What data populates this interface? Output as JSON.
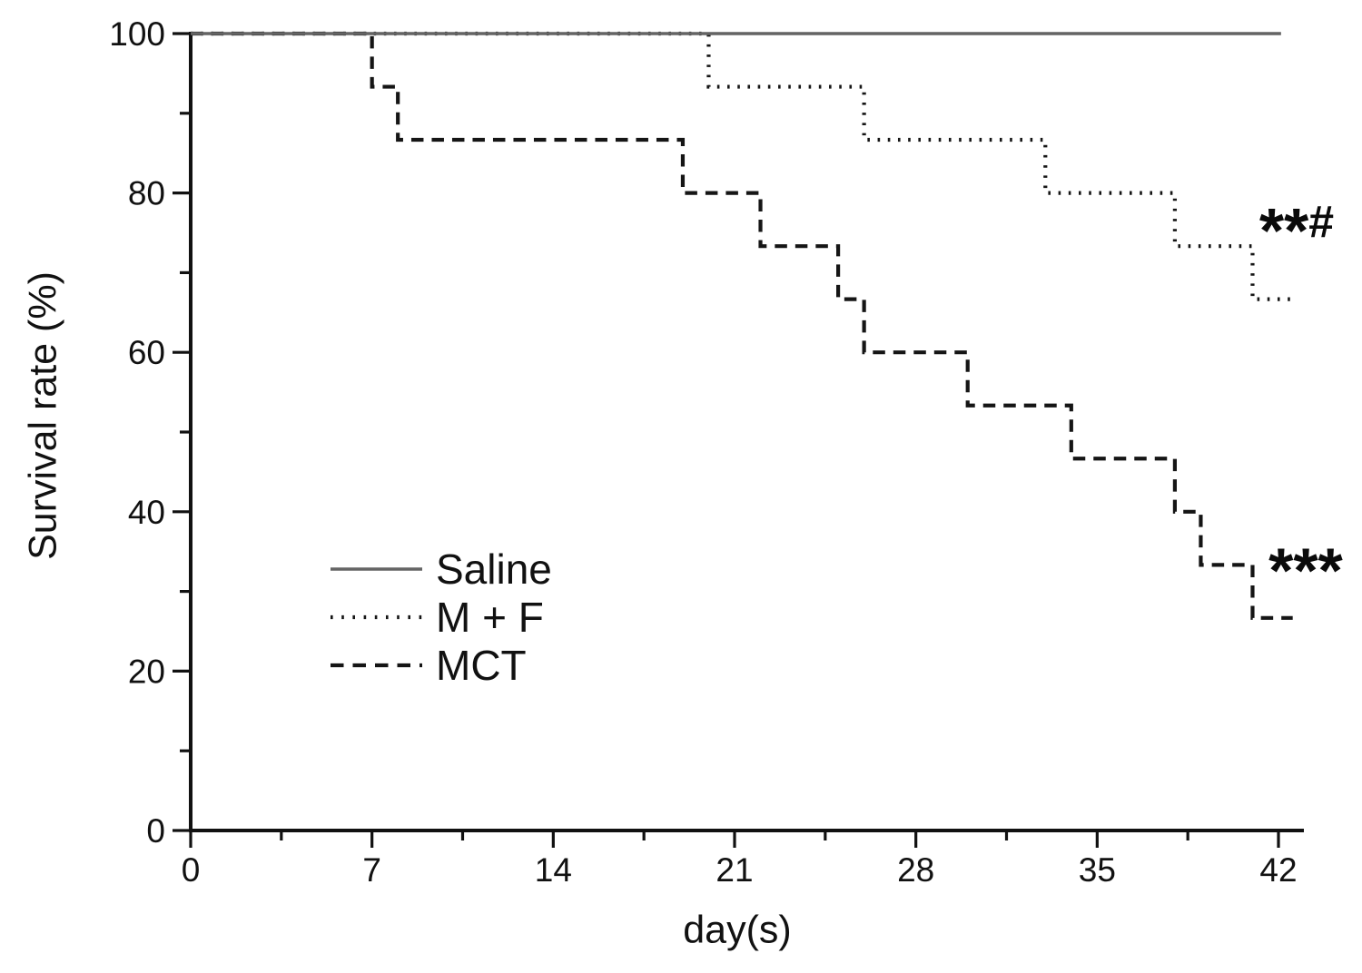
{
  "chart_data": {
    "type": "line",
    "subtype": "kaplan-meier-step-survival",
    "title": "",
    "xlabel": "day(s)",
    "ylabel": "Survival rate (%)",
    "xlim": [
      0,
      42
    ],
    "ylim": [
      0,
      100
    ],
    "x_major_ticks": [
      0,
      7,
      14,
      21,
      28,
      35,
      42
    ],
    "x_minor_ticks": [
      3.5,
      10.5,
      17.5,
      24.5,
      31.5,
      38.5
    ],
    "y_major_ticks": [
      0,
      20,
      40,
      60,
      80,
      100
    ],
    "y_minor_ticks": [
      10,
      30,
      50,
      70,
      90
    ],
    "grid": false,
    "legend_position": "inside-left-center",
    "axis_color": "#111111",
    "series": [
      {
        "name": "Saline",
        "line_style": "solid",
        "color": "#646464",
        "start": [
          0,
          100
        ],
        "drops": [],
        "end_day": 42.1
      },
      {
        "name": "M + F",
        "line_style": "dotted",
        "color": "#151515",
        "start": [
          0,
          100
        ],
        "drops": [
          [
            20,
            93.33
          ],
          [
            26,
            86.67
          ],
          [
            33,
            80
          ],
          [
            38,
            73.33
          ],
          [
            41,
            66.67
          ]
        ],
        "end_day": 42.55
      },
      {
        "name": "MCT",
        "line_style": "dashed",
        "color": "#151515",
        "start": [
          0,
          100
        ],
        "drops": [
          [
            7,
            93.33
          ],
          [
            8,
            86.67
          ],
          [
            19,
            80
          ],
          [
            22,
            73.33
          ],
          [
            25,
            66.67
          ],
          [
            26,
            60
          ],
          [
            30,
            53.33
          ],
          [
            34,
            46.67
          ],
          [
            38,
            40
          ],
          [
            39,
            33.33
          ],
          [
            41,
            26.67
          ]
        ],
        "end_day": 42.55
      }
    ],
    "annotations": [
      {
        "text": "**#",
        "day": 42.7,
        "value": 76.5,
        "applies_to": "M + F"
      },
      {
        "text": "***",
        "day": 43.05,
        "value": 33.8,
        "applies_to": "MCT"
      }
    ]
  }
}
